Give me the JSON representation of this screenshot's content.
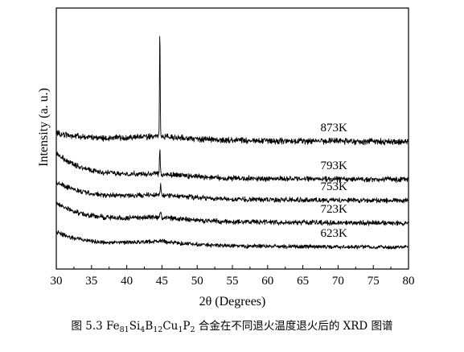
{
  "chart_data": {
    "type": "line",
    "xlabel": "2θ (Degrees)",
    "ylabel": "Intensity (a. u.)",
    "xlim": [
      30,
      80
    ],
    "xticks": [
      30,
      35,
      40,
      45,
      50,
      55,
      60,
      65,
      70,
      75,
      80
    ],
    "yticks_shown": false,
    "line_color": "#000000",
    "series": [
      {
        "name": "873K",
        "offset": 145,
        "start_rise": 8,
        "peak": {
          "x": 44.7,
          "height": 132,
          "width": 0.07
        },
        "noise": 3.0
      },
      {
        "name": "793K",
        "offset": 98,
        "start_rise": 30,
        "peak": {
          "x": 44.7,
          "height": 32,
          "width": 0.08
        },
        "noise": 2.6
      },
      {
        "name": "753K",
        "offset": 72,
        "start_rise": 20,
        "peak": {
          "x": 44.8,
          "height": 12,
          "width": 0.11
        },
        "noise": 2.4
      },
      {
        "name": "723K",
        "offset": 44,
        "start_rise": 22,
        "peak": {
          "x": 44.8,
          "height": 8,
          "width": 0.14
        },
        "noise": 2.4
      },
      {
        "name": "623K",
        "offset": 14,
        "start_rise": 16,
        "peak": {
          "x": 45.0,
          "height": 2,
          "width": 0.45
        },
        "noise": 2.0
      }
    ],
    "labels": [
      {
        "text": "873K",
        "x": 67.5
      },
      {
        "text": "793K",
        "x": 67.5
      },
      {
        "text": "753K",
        "x": 67.5
      },
      {
        "text": "723K",
        "x": 67.5
      },
      {
        "text": "623K",
        "x": 67.5
      }
    ]
  },
  "caption": {
    "prefix": "图 5.3 Fe",
    "parts": [
      {
        "t": "81",
        "sub": true
      },
      {
        "t": "Si",
        "sub": false
      },
      {
        "t": "4",
        "sub": true
      },
      {
        "t": "B",
        "sub": false
      },
      {
        "t": "12",
        "sub": true
      },
      {
        "t": "Cu",
        "sub": false
      },
      {
        "t": "1",
        "sub": true
      },
      {
        "t": "P",
        "sub": false
      },
      {
        "t": "2",
        "sub": true
      }
    ],
    "suffix": " 合金在不同退火温度退火后的 XRD 图谱"
  }
}
